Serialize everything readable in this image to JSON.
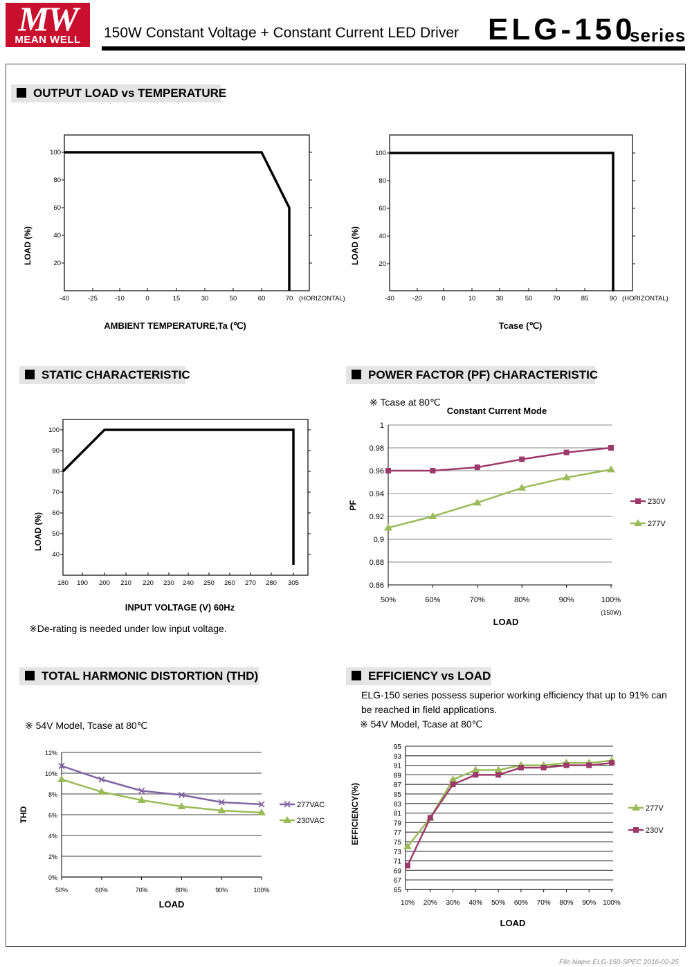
{
  "header": {
    "logo_mark": "MW",
    "logo_text": "MEAN WELL",
    "subtitle": "150W Constant Voltage + Constant Current LED Driver",
    "model": "ELG-150",
    "series": "series"
  },
  "sections": {
    "output_load": "OUTPUT LOAD vs TEMPERATURE",
    "static": "STATIC CHARACTERISTIC",
    "pf": "POWER FACTOR (PF) CHARACTERISTIC",
    "thd": "TOTAL HARMONIC DISTORTION (THD)",
    "efficiency": "EFFICIENCY vs LOAD"
  },
  "notes": {
    "derating": "※De-rating is needed under low input voltage.",
    "pf_condition": "※ Tcase at 80℃",
    "thd_condition": "※ 54V Model, Tcase at 80℃",
    "eff_desc_1": "ELG-150 series possess superior working efficiency that up to 91% can",
    "eff_desc_2": "be reached in field applications.",
    "eff_condition": "※ 54V Model, Tcase at 80℃"
  },
  "footer": "File Name:ELG-150-SPEC   2016-02-25",
  "colors": {
    "green": "#9bbb59",
    "purple": "#8064a2",
    "maroon": "#9b3a6a",
    "black": "#000000"
  },
  "chart_data": [
    {
      "id": "ambient",
      "type": "line",
      "xlabel": "AMBIENT TEMPERATURE,Ta (℃)",
      "ylabel": "LOAD (%)",
      "x_suffix": "(HORIZONTAL)",
      "x_ticks": [
        -40,
        -25,
        -10,
        0,
        15,
        30,
        50,
        60,
        70
      ],
      "y_ticks": [
        20,
        40,
        60,
        80,
        100
      ],
      "series": [
        {
          "x": [
            -40,
            60,
            70,
            70
          ],
          "y": [
            100,
            100,
            60,
            0
          ]
        }
      ]
    },
    {
      "id": "tcase",
      "type": "line",
      "xlabel": "Tcase (℃)",
      "ylabel": "LOAD (%)",
      "x_suffix": "(HORIZONTAL)",
      "x_ticks": [
        -40,
        -20,
        0,
        10,
        30,
        50,
        70,
        85,
        90
      ],
      "y_ticks": [
        20,
        40,
        60,
        80,
        100
      ],
      "series": [
        {
          "x": [
            -40,
            90,
            90
          ],
          "y": [
            100,
            100,
            0
          ]
        }
      ]
    },
    {
      "id": "static",
      "type": "line",
      "xlabel": "INPUT VOLTAGE (V) 60Hz",
      "ylabel": "LOAD (%)",
      "x_ticks": [
        180,
        190,
        200,
        210,
        220,
        230,
        240,
        250,
        260,
        270,
        280,
        305
      ],
      "y_ticks": [
        40,
        50,
        60,
        70,
        80,
        90,
        100
      ],
      "series": [
        {
          "x": [
            180,
            200,
            305,
            305
          ],
          "y": [
            80,
            100,
            100,
            35
          ]
        }
      ]
    },
    {
      "id": "pf",
      "type": "line",
      "title": "Constant Current Mode",
      "xlabel": "LOAD",
      "ylabel": "PF",
      "categories": [
        "50%",
        "60%",
        "70%",
        "80%",
        "90%",
        "100%"
      ],
      "x_note": "(150W)",
      "y_ticks": [
        "0.86",
        "0.88",
        "0.9",
        "0.92",
        "0.94",
        "0.96",
        "0.98",
        "1"
      ],
      "ylim": [
        0.86,
        1
      ],
      "series": [
        {
          "name": "277V",
          "values": [
            0.91,
            0.92,
            0.932,
            0.945,
            0.954,
            0.961
          ]
        },
        {
          "name": "230V",
          "values": [
            0.96,
            0.96,
            0.963,
            0.97,
            0.976,
            0.98
          ]
        }
      ]
    },
    {
      "id": "thd",
      "type": "line",
      "xlabel": "LOAD",
      "ylabel": "THD",
      "categories": [
        "50%",
        "60%",
        "70%",
        "80%",
        "90%",
        "100%"
      ],
      "y_ticks": [
        "0%",
        "2%",
        "4%",
        "6%",
        "8%",
        "10%",
        "12%"
      ],
      "ylim": [
        0,
        12
      ],
      "series": [
        {
          "name": "277VAC",
          "values": [
            10.7,
            9.4,
            8.3,
            7.9,
            7.2,
            7.0
          ]
        },
        {
          "name": "230VAC",
          "values": [
            9.4,
            8.2,
            7.4,
            6.8,
            6.4,
            6.2
          ]
        }
      ]
    },
    {
      "id": "eff",
      "type": "line",
      "xlabel": "LOAD",
      "ylabel": "EFFICIENCY(%)",
      "categories": [
        "10%",
        "20%",
        "30%",
        "40%",
        "50%",
        "60%",
        "70%",
        "80%",
        "90%",
        "100%"
      ],
      "y_ticks": [
        "65",
        "67",
        "69",
        "71",
        "73",
        "75",
        "77",
        "79",
        "81",
        "83",
        "85",
        "87",
        "89",
        "91",
        "93",
        "95"
      ],
      "ylim": [
        65,
        95
      ],
      "series": [
        {
          "name": "277V",
          "values": [
            74,
            80,
            88,
            90,
            90,
            91,
            91,
            91.5,
            91.5,
            92
          ]
        },
        {
          "name": "230V",
          "values": [
            70,
            80,
            87,
            89,
            89,
            90.5,
            90.5,
            91,
            91,
            91.5
          ]
        }
      ]
    }
  ]
}
